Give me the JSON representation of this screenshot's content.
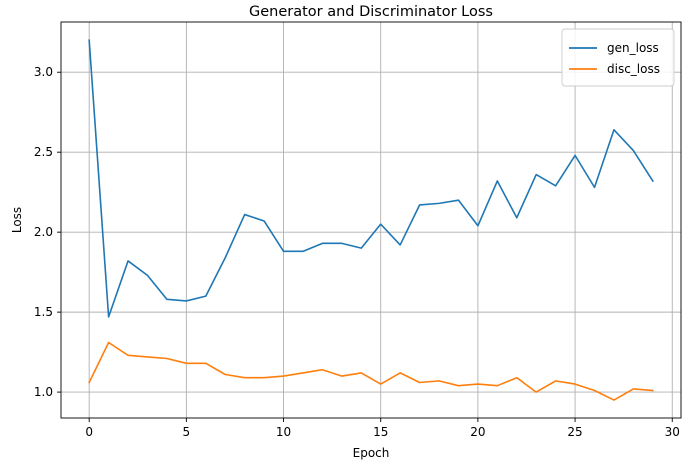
{
  "chart_data": {
    "type": "line",
    "title": "Generator and Discriminator Loss",
    "xlabel": "Epoch",
    "ylabel": "Loss",
    "xlim": [
      -1.45,
      30.45
    ],
    "ylim": [
      0.838,
      3.314
    ],
    "xticks": [
      0,
      5,
      10,
      15,
      20,
      25,
      30
    ],
    "yticks": [
      1.0,
      1.5,
      2.0,
      2.5,
      3.0
    ],
    "grid": true,
    "legend_position": "top-right",
    "x": [
      0,
      1,
      2,
      3,
      4,
      5,
      6,
      7,
      8,
      9,
      10,
      11,
      12,
      13,
      14,
      15,
      16,
      17,
      18,
      19,
      20,
      21,
      22,
      23,
      24,
      25,
      26,
      27,
      28,
      29
    ],
    "series": [
      {
        "name": "gen_loss",
        "color": "#1f77b4",
        "values": [
          3.2,
          1.47,
          1.82,
          1.73,
          1.58,
          1.57,
          1.6,
          1.84,
          2.11,
          2.07,
          1.88,
          1.88,
          1.93,
          1.93,
          1.9,
          2.05,
          1.92,
          2.17,
          2.18,
          2.2,
          2.04,
          2.32,
          2.09,
          2.36,
          2.29,
          2.48,
          2.28,
          2.64,
          2.51,
          2.32
        ]
      },
      {
        "name": "disc_loss",
        "color": "#ff7f0e",
        "values": [
          1.06,
          1.31,
          1.23,
          1.22,
          1.21,
          1.18,
          1.18,
          1.11,
          1.09,
          1.09,
          1.1,
          1.12,
          1.14,
          1.1,
          1.12,
          1.05,
          1.12,
          1.06,
          1.07,
          1.04,
          1.05,
          1.04,
          1.09,
          1.0,
          1.07,
          1.05,
          1.01,
          0.95,
          1.02,
          1.01
        ]
      }
    ]
  }
}
